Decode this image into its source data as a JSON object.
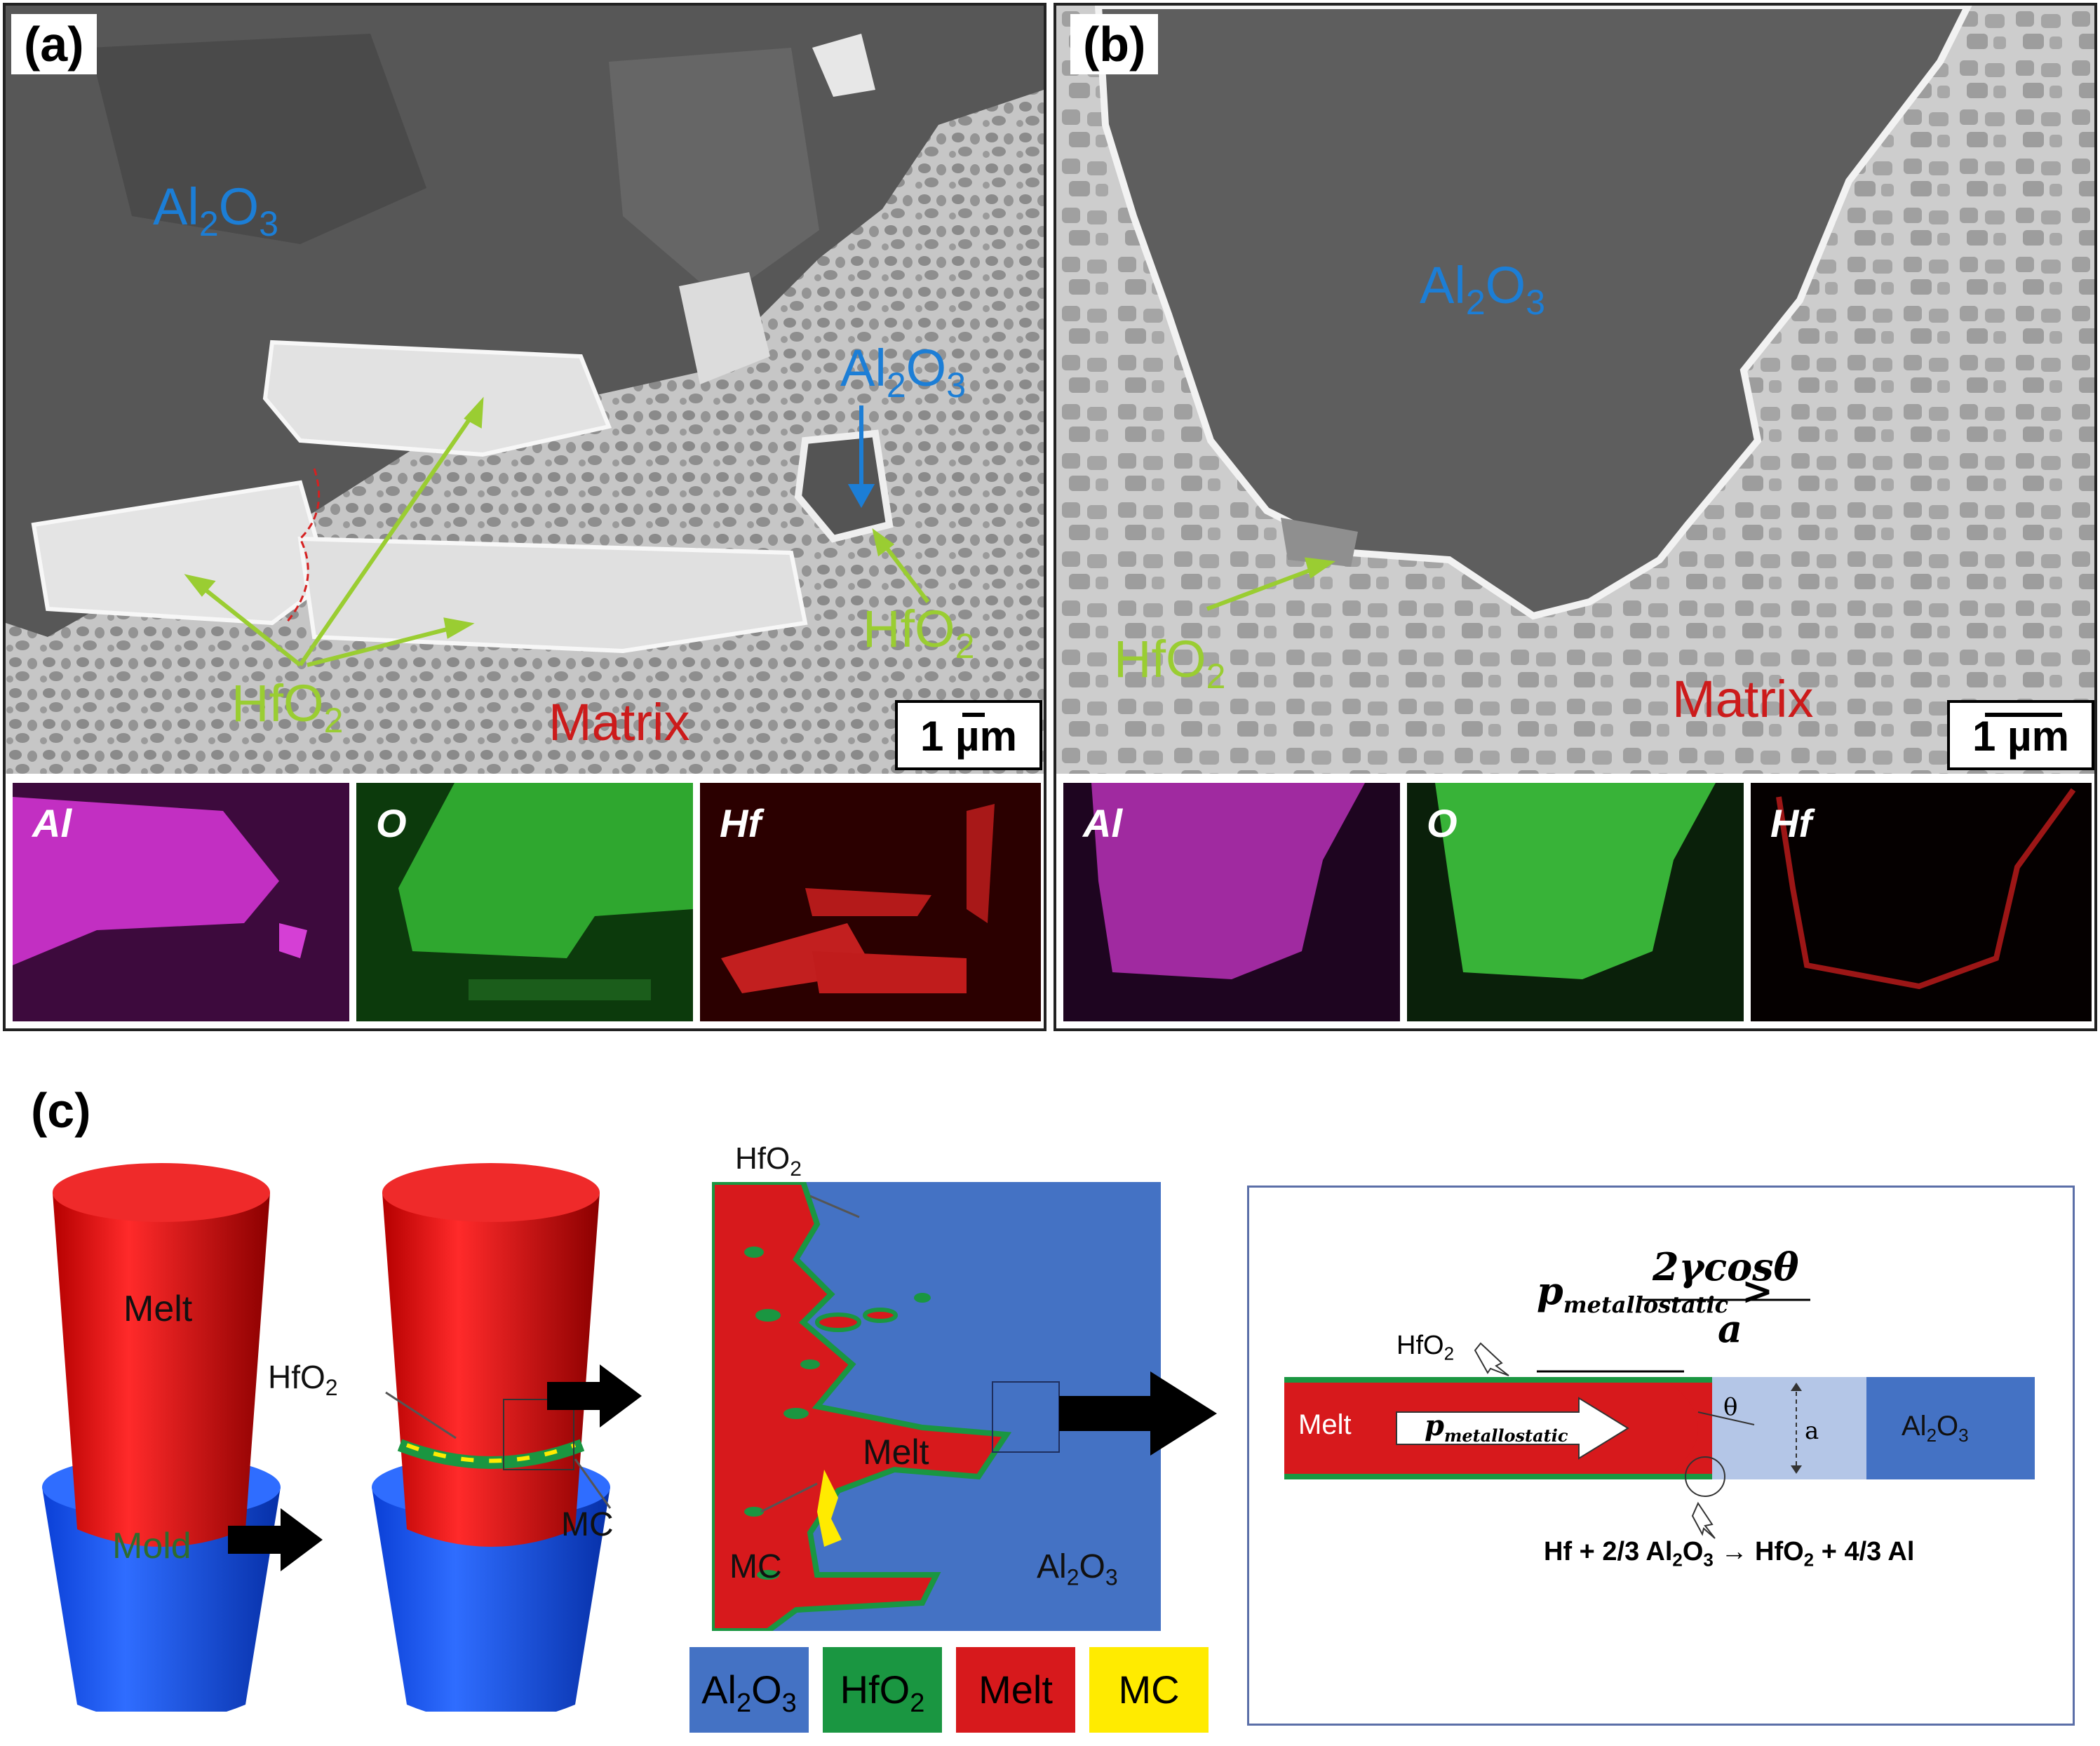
{
  "panel_a": {
    "tag": "(a)",
    "labels": {
      "al2o3_1": "Al",
      "al2o3_2": "Al",
      "hfo2_1": "HfO",
      "hfo2_2": "HfO",
      "matrix": "Matrix"
    },
    "scale": "1 µm",
    "maps": [
      "Al",
      "O",
      "Hf"
    ]
  },
  "panel_b": {
    "tag": "(b)",
    "labels": {
      "al2o3": "Al",
      "hfo2": "HfO",
      "matrix": "Matrix"
    },
    "scale": "1 µm",
    "maps": [
      "Al",
      "O",
      "Hf"
    ]
  },
  "panel_c": {
    "tag": "(c)",
    "cone1": {
      "top": "Melt",
      "bottom": "Mold"
    },
    "cone2": {
      "hfo2": "HfO",
      "mc": "MC"
    },
    "cross_section": {
      "hfo2": "HfO",
      "melt": "Melt",
      "mc": "MC",
      "al2o3": "Al"
    },
    "legend": [
      {
        "label": "Al",
        "sub": "2",
        "label2": "O",
        "sub2": "3",
        "color": "#4472c4"
      },
      {
        "label": "HfO",
        "sub": "2",
        "label2": "",
        "sub2": "",
        "color": "#1a9641"
      },
      {
        "label": "Melt",
        "sub": "",
        "label2": "",
        "sub2": "",
        "color": "#d7191c"
      },
      {
        "label": "MC",
        "sub": "",
        "label2": "",
        "sub2": "",
        "color": "#ffeb00"
      }
    ],
    "schematic": {
      "equation_p": "p",
      "equation_sub": "metallostatic",
      "numerator": "2γcosθ",
      "denominator": "a",
      "hfo2": "HfO",
      "melt": "Melt",
      "arrow_p": "p",
      "arrow_sub": "metallostatic",
      "theta": "θ",
      "a": "a",
      "al2o3": "Al",
      "reaction": "Hf + 2/3 Al",
      "reaction2": "O",
      "reaction3": " → HfO",
      "reaction4": " + 4/3 Al"
    }
  },
  "colors": {
    "al2o3": "#4472c4",
    "hfo2": "#1a9641",
    "melt": "#d7191c",
    "mc": "#ffeb00",
    "sem_dark": "#5b5b5b",
    "sem_matrix": "#b9b9b9"
  }
}
